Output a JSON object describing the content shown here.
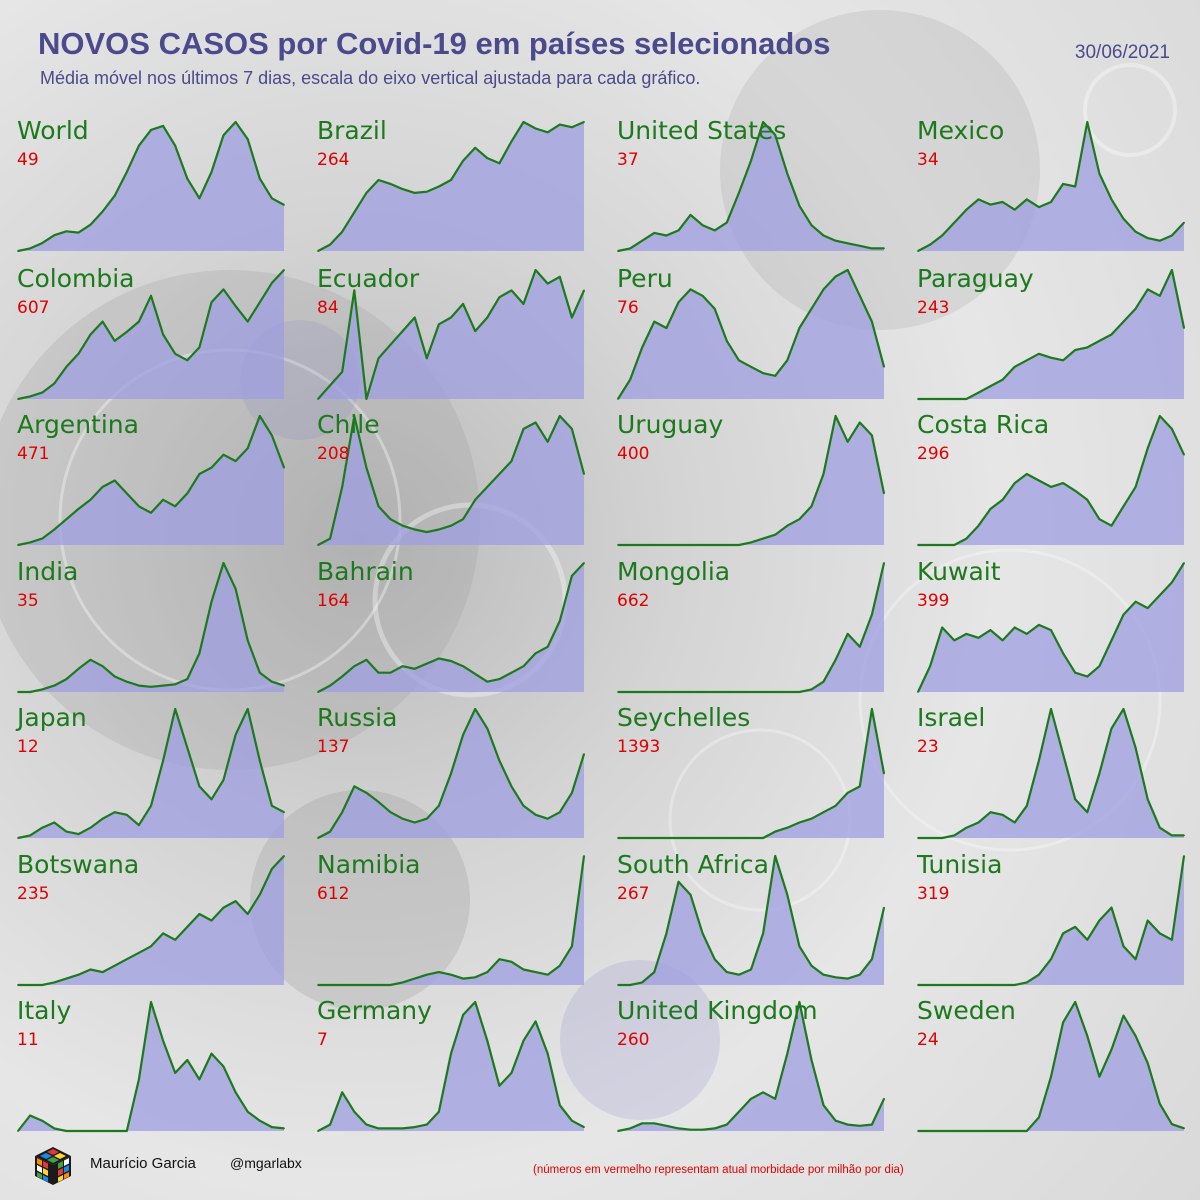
{
  "header": {
    "title": "NOVOS CASOS por Covid-19 em países selecionados",
    "subtitle": "Média móvel nos últimos 7 dias, escala do eixo vertical ajustada para cada gráfico.",
    "date": "30/06/2021"
  },
  "footer": {
    "author": "Maurício Garcia",
    "handle": "@mgarlabx",
    "note": "(números em vermelho representam atual morbidade por milhão por dia)"
  },
  "colors": {
    "title": "#4b4a8c",
    "line": "#1c7a1c",
    "fill": "#9e9ee0",
    "value": "#e00000"
  },
  "chart_data": [
    {
      "type": "area",
      "title": "World",
      "value": "49",
      "series": [
        {
          "values": [
            0,
            2,
            6,
            12,
            15,
            14,
            20,
            30,
            42,
            60,
            80,
            92,
            95,
            80,
            55,
            40,
            60,
            88,
            98,
            85,
            55,
            40,
            35
          ]
        }
      ]
    },
    {
      "type": "area",
      "title": "Brazil",
      "value": "264",
      "series": [
        {
          "values": [
            0,
            5,
            15,
            30,
            45,
            55,
            52,
            48,
            45,
            46,
            50,
            55,
            70,
            80,
            72,
            68,
            85,
            100,
            95,
            92,
            98,
            96,
            100
          ]
        }
      ]
    },
    {
      "type": "area",
      "title": "United States",
      "value": "37",
      "series": [
        {
          "values": [
            0,
            2,
            8,
            14,
            12,
            16,
            28,
            20,
            16,
            22,
            45,
            70,
            100,
            90,
            60,
            35,
            20,
            12,
            8,
            6,
            4,
            2,
            2
          ]
        }
      ]
    },
    {
      "type": "area",
      "title": "Mexico",
      "value": "34",
      "series": [
        {
          "values": [
            0,
            5,
            12,
            22,
            32,
            40,
            36,
            38,
            32,
            40,
            34,
            38,
            52,
            50,
            100,
            60,
            40,
            25,
            15,
            10,
            8,
            12,
            22
          ]
        }
      ]
    },
    {
      "type": "area",
      "title": "Colombia",
      "value": "607",
      "series": [
        {
          "values": [
            0,
            2,
            5,
            12,
            25,
            35,
            50,
            60,
            45,
            52,
            60,
            80,
            50,
            35,
            30,
            40,
            75,
            85,
            72,
            60,
            75,
            90,
            100
          ]
        }
      ]
    },
    {
      "type": "area",
      "title": "Ecuador",
      "value": "84",
      "series": [
        {
          "values": [
            0,
            10,
            20,
            80,
            0,
            30,
            40,
            50,
            60,
            30,
            55,
            60,
            70,
            50,
            60,
            75,
            80,
            70,
            95,
            85,
            90,
            60,
            80
          ]
        }
      ]
    },
    {
      "type": "area",
      "title": "Peru",
      "value": "76",
      "series": [
        {
          "values": [
            0,
            15,
            40,
            60,
            55,
            75,
            85,
            80,
            70,
            45,
            30,
            25,
            20,
            18,
            30,
            55,
            70,
            85,
            95,
            100,
            80,
            60,
            25
          ]
        }
      ]
    },
    {
      "type": "area",
      "title": "Paraguay",
      "value": "243",
      "series": [
        {
          "values": [
            0,
            0,
            0,
            0,
            0,
            5,
            10,
            15,
            25,
            30,
            35,
            32,
            30,
            38,
            40,
            45,
            50,
            60,
            70,
            85,
            80,
            100,
            55
          ]
        }
      ]
    },
    {
      "type": "area",
      "title": "Argentina",
      "value": "471",
      "series": [
        {
          "values": [
            0,
            2,
            5,
            12,
            20,
            28,
            35,
            45,
            50,
            40,
            30,
            25,
            35,
            30,
            40,
            55,
            60,
            70,
            65,
            75,
            100,
            85,
            60
          ]
        }
      ]
    },
    {
      "type": "area",
      "title": "Chile",
      "value": "208",
      "series": [
        {
          "values": [
            0,
            5,
            45,
            100,
            60,
            30,
            20,
            15,
            12,
            10,
            12,
            15,
            20,
            35,
            45,
            55,
            65,
            90,
            95,
            80,
            100,
            90,
            55
          ]
        }
      ]
    },
    {
      "type": "area",
      "title": "Uruguay",
      "value": "400",
      "series": [
        {
          "values": [
            0,
            0,
            0,
            0,
            0,
            0,
            0,
            0,
            0,
            0,
            0,
            2,
            5,
            8,
            15,
            20,
            30,
            55,
            100,
            80,
            95,
            85,
            40
          ]
        }
      ]
    },
    {
      "type": "area",
      "title": "Costa Rica",
      "value": "296",
      "series": [
        {
          "values": [
            0,
            0,
            0,
            0,
            5,
            15,
            28,
            35,
            48,
            55,
            50,
            45,
            48,
            42,
            35,
            20,
            15,
            30,
            45,
            75,
            100,
            90,
            70
          ]
        }
      ]
    },
    {
      "type": "area",
      "title": "India",
      "value": "35",
      "series": [
        {
          "values": [
            0,
            0,
            2,
            5,
            10,
            18,
            25,
            20,
            12,
            8,
            5,
            4,
            5,
            6,
            10,
            30,
            70,
            100,
            80,
            40,
            15,
            8,
            5
          ]
        }
      ]
    },
    {
      "type": "area",
      "title": "Bahrain",
      "value": "164",
      "series": [
        {
          "values": [
            0,
            5,
            12,
            20,
            25,
            15,
            15,
            20,
            18,
            22,
            26,
            24,
            20,
            14,
            8,
            10,
            15,
            20,
            30,
            35,
            55,
            90,
            100
          ]
        }
      ]
    },
    {
      "type": "area",
      "title": "Mongolia",
      "value": "662",
      "series": [
        {
          "values": [
            0,
            0,
            0,
            0,
            0,
            0,
            0,
            0,
            0,
            0,
            0,
            0,
            0,
            0,
            0,
            0,
            2,
            8,
            25,
            45,
            35,
            60,
            100
          ]
        }
      ]
    },
    {
      "type": "area",
      "title": "Kuwait",
      "value": "399",
      "series": [
        {
          "values": [
            0,
            20,
            50,
            40,
            45,
            42,
            48,
            40,
            50,
            45,
            52,
            48,
            30,
            15,
            12,
            20,
            40,
            60,
            70,
            65,
            75,
            85,
            100
          ]
        }
      ]
    },
    {
      "type": "area",
      "title": "Japan",
      "value": "12",
      "series": [
        {
          "values": [
            0,
            2,
            8,
            12,
            5,
            3,
            8,
            15,
            20,
            18,
            10,
            25,
            60,
            100,
            70,
            40,
            30,
            45,
            80,
            100,
            60,
            25,
            20
          ]
        }
      ]
    },
    {
      "type": "area",
      "title": "Russia",
      "value": "137",
      "series": [
        {
          "values": [
            0,
            5,
            20,
            40,
            35,
            28,
            20,
            15,
            12,
            15,
            25,
            50,
            80,
            100,
            85,
            60,
            40,
            25,
            18,
            15,
            20,
            35,
            65
          ]
        }
      ]
    },
    {
      "type": "area",
      "title": "Seychelles",
      "value": "1393",
      "series": [
        {
          "values": [
            0,
            0,
            0,
            0,
            0,
            0,
            0,
            0,
            0,
            0,
            0,
            0,
            0,
            5,
            8,
            12,
            15,
            20,
            25,
            35,
            40,
            100,
            50
          ]
        }
      ]
    },
    {
      "type": "area",
      "title": "Israel",
      "value": "23",
      "series": [
        {
          "values": [
            0,
            0,
            0,
            2,
            8,
            12,
            20,
            18,
            12,
            25,
            60,
            100,
            65,
            30,
            20,
            50,
            85,
            100,
            70,
            30,
            8,
            2,
            2
          ]
        }
      ]
    },
    {
      "type": "area",
      "title": "Botswana",
      "value": "235",
      "series": [
        {
          "values": [
            0,
            0,
            0,
            2,
            5,
            8,
            12,
            10,
            15,
            20,
            25,
            30,
            40,
            35,
            45,
            55,
            50,
            60,
            65,
            55,
            70,
            90,
            100
          ]
        }
      ]
    },
    {
      "type": "area",
      "title": "Namibia",
      "value": "612",
      "series": [
        {
          "values": [
            0,
            0,
            0,
            0,
            0,
            0,
            0,
            2,
            5,
            8,
            10,
            8,
            5,
            6,
            10,
            20,
            18,
            12,
            10,
            8,
            15,
            30,
            100
          ]
        }
      ]
    },
    {
      "type": "area",
      "title": "South Africa",
      "value": "267",
      "series": [
        {
          "values": [
            0,
            0,
            2,
            10,
            40,
            80,
            70,
            40,
            20,
            10,
            8,
            12,
            40,
            100,
            70,
            30,
            15,
            8,
            6,
            5,
            8,
            20,
            60
          ]
        }
      ]
    },
    {
      "type": "area",
      "title": "Tunisia",
      "value": "319",
      "series": [
        {
          "values": [
            0,
            0,
            0,
            0,
            0,
            0,
            0,
            0,
            0,
            2,
            8,
            20,
            40,
            45,
            35,
            50,
            60,
            30,
            20,
            50,
            40,
            35,
            100
          ]
        }
      ]
    },
    {
      "type": "area",
      "title": "Italy",
      "value": "11",
      "series": [
        {
          "values": [
            0,
            12,
            8,
            2,
            0,
            0,
            0,
            0,
            0,
            0,
            40,
            100,
            70,
            45,
            55,
            40,
            60,
            50,
            30,
            15,
            8,
            3,
            2
          ]
        }
      ]
    },
    {
      "type": "area",
      "title": "Germany",
      "value": "7",
      "series": [
        {
          "values": [
            0,
            5,
            30,
            15,
            5,
            2,
            2,
            2,
            3,
            5,
            15,
            60,
            90,
            100,
            70,
            35,
            45,
            70,
            85,
            60,
            20,
            8,
            3
          ]
        }
      ]
    },
    {
      "type": "area",
      "title": "United Kingdom",
      "value": "260",
      "series": [
        {
          "values": [
            0,
            2,
            6,
            6,
            4,
            2,
            1,
            1,
            2,
            5,
            15,
            25,
            30,
            25,
            60,
            100,
            55,
            20,
            8,
            5,
            4,
            5,
            25
          ]
        }
      ]
    },
    {
      "type": "area",
      "title": "Sweden",
      "value": "24",
      "series": [
        {
          "values": [
            0,
            0,
            0,
            0,
            0,
            0,
            0,
            0,
            0,
            0,
            10,
            40,
            80,
            95,
            70,
            40,
            60,
            85,
            70,
            50,
            20,
            5,
            2
          ]
        }
      ]
    }
  ]
}
